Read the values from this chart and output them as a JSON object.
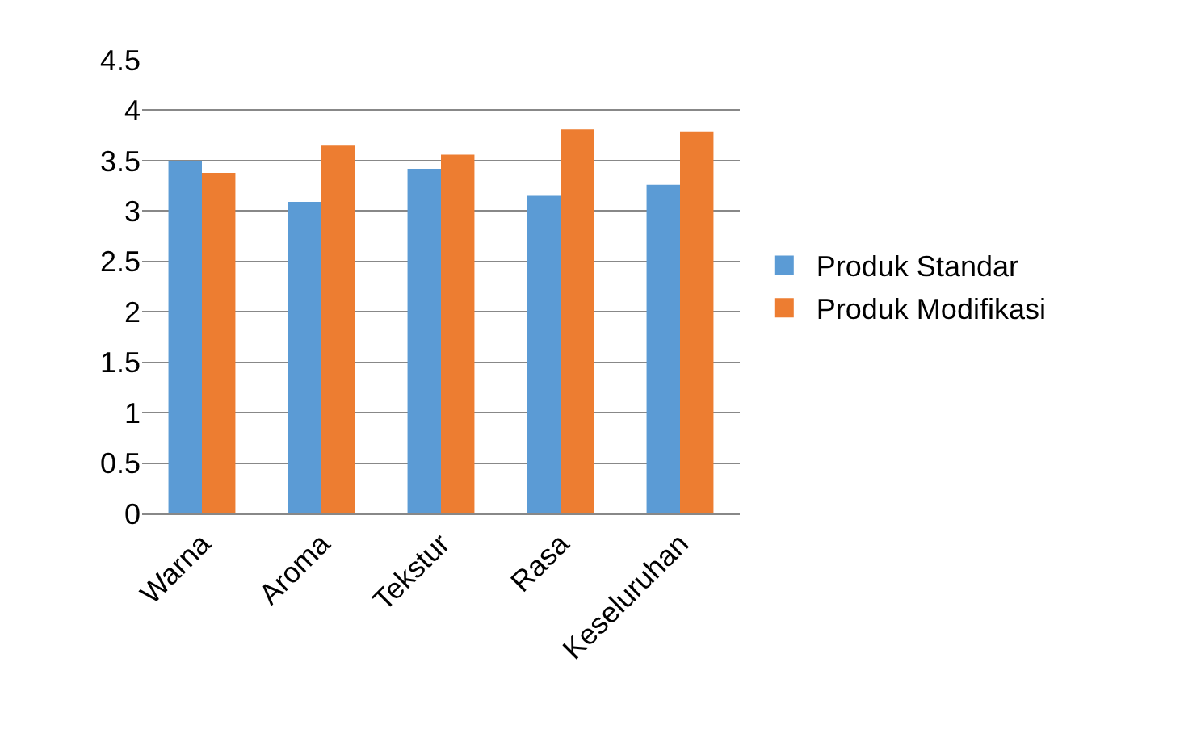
{
  "chart_data": {
    "type": "bar",
    "categories": [
      "Warna",
      "Aroma",
      "Tekstur",
      "Rasa",
      "Keseluruhan"
    ],
    "series": [
      {
        "name": "Produk Standar",
        "color": "#5b9bd5",
        "values": [
          3.5,
          3.09,
          3.42,
          3.15,
          3.26
        ]
      },
      {
        "name": "Produk Modifikasi",
        "color": "#ed7d31",
        "values": [
          3.38,
          3.65,
          3.56,
          3.81,
          3.79
        ]
      }
    ],
    "ylim": [
      0,
      4.5
    ],
    "yticks": [
      0,
      0.5,
      1,
      1.5,
      2,
      2.5,
      3,
      3.5,
      4,
      4.5
    ],
    "grid": "y",
    "legend": "right"
  }
}
